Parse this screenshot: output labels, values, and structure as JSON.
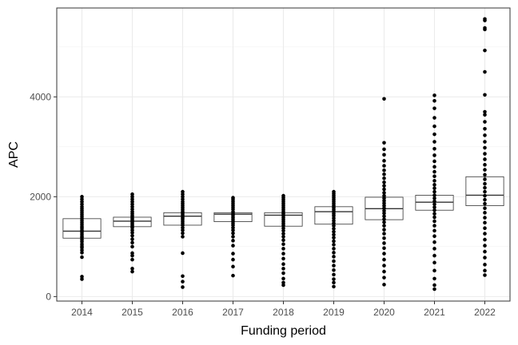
{
  "chart_data": {
    "type": "box",
    "xlabel": "Funding period",
    "ylabel": "APC",
    "categories": [
      "2014",
      "2015",
      "2016",
      "2017",
      "2018",
      "2019",
      "2020",
      "2021",
      "2022"
    ],
    "yticks": [
      0,
      2000,
      4000
    ],
    "ylim": [
      -90,
      5780
    ],
    "grid": true,
    "legend": "none",
    "boxes": [
      {
        "category": "2014",
        "q1": 1170,
        "median": 1310,
        "q3": 1560
      },
      {
        "category": "2015",
        "q1": 1400,
        "median": 1510,
        "q3": 1590
      },
      {
        "category": "2016",
        "q1": 1430,
        "median": 1610,
        "q3": 1680
      },
      {
        "category": "2017",
        "q1": 1500,
        "median": 1650,
        "q3": 1680
      },
      {
        "category": "2018",
        "q1": 1410,
        "median": 1630,
        "q3": 1680
      },
      {
        "category": "2019",
        "q1": 1450,
        "median": 1700,
        "q3": 1800
      },
      {
        "category": "2020",
        "q1": 1540,
        "median": 1760,
        "q3": 1990
      },
      {
        "category": "2021",
        "q1": 1730,
        "median": 1890,
        "q3": 2030
      },
      {
        "category": "2022",
        "q1": 1820,
        "median": 2030,
        "q3": 2400
      }
    ],
    "points": [
      {
        "category": "2014",
        "values": [
          350,
          400,
          790,
          880,
          930,
          980,
          1010,
          1050,
          1100,
          1140,
          1180,
          1210,
          1250,
          1290,
          1330,
          1370,
          1400,
          1440,
          1480,
          1520,
          1560,
          1600,
          1640,
          1680,
          1720,
          1760,
          1800,
          1850,
          1900,
          1950,
          2000
        ]
      },
      {
        "category": "2015",
        "values": [
          500,
          560,
          740,
          820,
          870,
          1000,
          1080,
          1150,
          1220,
          1280,
          1330,
          1380,
          1410,
          1440,
          1470,
          1500,
          1530,
          1560,
          1590,
          1620,
          1660,
          1700,
          1750,
          1800,
          1850,
          1900,
          1950,
          2000,
          2050
        ]
      },
      {
        "category": "2016",
        "values": [
          190,
          300,
          410,
          870,
          1200,
          1270,
          1330,
          1380,
          1430,
          1470,
          1510,
          1550,
          1580,
          1610,
          1640,
          1670,
          1700,
          1740,
          1780,
          1820,
          1860,
          1900,
          1950,
          2000,
          2050,
          2100
        ]
      },
      {
        "category": "2017",
        "values": [
          420,
          600,
          740,
          860,
          1020,
          1120,
          1200,
          1270,
          1330,
          1380,
          1430,
          1470,
          1510,
          1550,
          1590,
          1630,
          1660,
          1700,
          1750,
          1790,
          1830,
          1870,
          1910,
          1950,
          1980
        ]
      },
      {
        "category": "2018",
        "values": [
          230,
          280,
          360,
          470,
          560,
          650,
          760,
          860,
          960,
          1050,
          1130,
          1200,
          1260,
          1320,
          1370,
          1420,
          1460,
          1500,
          1540,
          1580,
          1620,
          1660,
          1700,
          1740,
          1780,
          1820,
          1860,
          1900,
          1940,
          1980,
          2020
        ]
      },
      {
        "category": "2019",
        "values": [
          200,
          280,
          350,
          440,
          530,
          620,
          710,
          800,
          880,
          960,
          1040,
          1110,
          1180,
          1240,
          1300,
          1360,
          1420,
          1470,
          1520,
          1570,
          1620,
          1660,
          1700,
          1740,
          1780,
          1820,
          1860,
          1900,
          1940,
          1980,
          2020,
          2060,
          2100
        ]
      },
      {
        "category": "2020",
        "values": [
          240,
          380,
          500,
          620,
          740,
          860,
          970,
          1070,
          1170,
          1260,
          1340,
          1420,
          1490,
          1550,
          1610,
          1670,
          1720,
          1770,
          1820,
          1870,
          1920,
          1970,
          2020,
          2080,
          2150,
          2220,
          2290,
          2370,
          2450,
          2530,
          2620,
          2720,
          2840,
          2950,
          3080,
          3960
        ]
      },
      {
        "category": "2021",
        "values": [
          150,
          230,
          360,
          520,
          680,
          820,
          960,
          1090,
          1210,
          1320,
          1420,
          1510,
          1590,
          1660,
          1730,
          1790,
          1850,
          1910,
          1970,
          2030,
          2100,
          2170,
          2240,
          2320,
          2410,
          2500,
          2600,
          2710,
          2830,
          2960,
          3100,
          3250,
          3410,
          3580,
          3770,
          3920,
          4030
        ]
      },
      {
        "category": "2022",
        "values": [
          430,
          520,
          640,
          780,
          900,
          1020,
          1140,
          1260,
          1370,
          1480,
          1580,
          1680,
          1770,
          1860,
          1940,
          2020,
          2100,
          2180,
          2260,
          2350,
          2440,
          2540,
          2640,
          2750,
          2860,
          2980,
          3100,
          3230,
          3360,
          3500,
          3640,
          3700,
          4040,
          4500,
          4930,
          5350,
          5380,
          5530,
          5560
        ]
      }
    ]
  }
}
